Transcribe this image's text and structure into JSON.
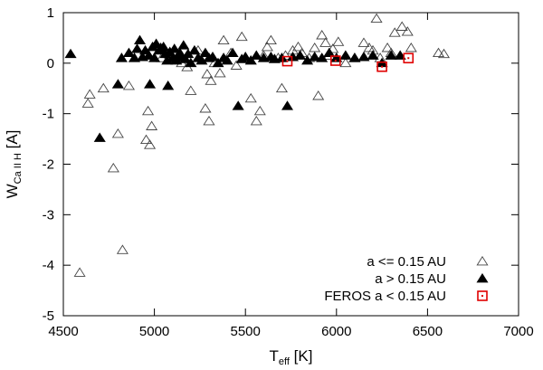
{
  "chart_data": {
    "type": "scatter",
    "xlim": [
      4500,
      7000
    ],
    "ylim": [
      -5,
      1
    ],
    "x_ticks": [
      "4500",
      "5000",
      "5500",
      "6000",
      "6500",
      "7000"
    ],
    "y_ticks": [
      "1",
      "0",
      "-1",
      "-2",
      "-3",
      "-4",
      "-5"
    ],
    "xlabel_main": "T",
    "xlabel_sub": "eff",
    "xlabel_unit": " [K]",
    "ylabel_main": "W",
    "ylabel_sub": "Ca II H",
    "ylabel_unit": " [A]",
    "grid": false,
    "legend_position": "bottom-right",
    "series": [
      {
        "name": "a <= 0.15 AU",
        "marker": "open-triangle",
        "color": "#444444",
        "points": [
          [
            4590,
            -4.15
          ],
          [
            4635,
            -0.8
          ],
          [
            4645,
            -0.62
          ],
          [
            4720,
            -0.5
          ],
          [
            4775,
            -2.08
          ],
          [
            4800,
            -1.4
          ],
          [
            4825,
            -3.7
          ],
          [
            4860,
            -0.45
          ],
          [
            4955,
            -1.52
          ],
          [
            4965,
            -0.95
          ],
          [
            4975,
            -1.62
          ],
          [
            4985,
            -1.25
          ],
          [
            5010,
            0.35
          ],
          [
            5040,
            0.1
          ],
          [
            5120,
            0.08
          ],
          [
            5150,
            0.0
          ],
          [
            5180,
            -0.08
          ],
          [
            5200,
            -0.55
          ],
          [
            5240,
            0.25
          ],
          [
            5280,
            -0.9
          ],
          [
            5290,
            -0.22
          ],
          [
            5300,
            -1.15
          ],
          [
            5310,
            -0.35
          ],
          [
            5330,
            0.0
          ],
          [
            5360,
            -0.2
          ],
          [
            5380,
            0.45
          ],
          [
            5420,
            0.2
          ],
          [
            5450,
            -0.05
          ],
          [
            5480,
            0.52
          ],
          [
            5500,
            0.1
          ],
          [
            5530,
            -0.7
          ],
          [
            5560,
            -1.15
          ],
          [
            5580,
            -0.95
          ],
          [
            5600,
            0.15
          ],
          [
            5620,
            0.32
          ],
          [
            5640,
            0.45
          ],
          [
            5680,
            0.1
          ],
          [
            5700,
            -0.5
          ],
          [
            5720,
            0.15
          ],
          [
            5760,
            0.25
          ],
          [
            5790,
            0.32
          ],
          [
            5810,
            0.2
          ],
          [
            5850,
            0.1
          ],
          [
            5880,
            0.3
          ],
          [
            5900,
            -0.65
          ],
          [
            5920,
            0.55
          ],
          [
            5940,
            0.4
          ],
          [
            5960,
            0.15
          ],
          [
            5980,
            0.28
          ],
          [
            6010,
            0.42
          ],
          [
            6050,
            0.0
          ],
          [
            6100,
            0.1
          ],
          [
            6150,
            0.4
          ],
          [
            6180,
            0.3
          ],
          [
            6200,
            0.25
          ],
          [
            6220,
            0.88
          ],
          [
            6240,
            0.1
          ],
          [
            6280,
            0.3
          ],
          [
            6300,
            0.2
          ],
          [
            6320,
            0.6
          ],
          [
            6360,
            0.72
          ],
          [
            6390,
            0.62
          ],
          [
            6410,
            0.3
          ],
          [
            6560,
            0.2
          ],
          [
            6590,
            0.18
          ]
        ]
      },
      {
        "name": "a > 0.15 AU",
        "marker": "filled-triangle",
        "color": "#000000",
        "points": [
          [
            4540,
            0.18
          ],
          [
            4700,
            -1.48
          ],
          [
            4800,
            -0.42
          ],
          [
            4820,
            0.1
          ],
          [
            4860,
            0.2
          ],
          [
            4890,
            0.1
          ],
          [
            4905,
            0.28
          ],
          [
            4920,
            0.45
          ],
          [
            4935,
            0.12
          ],
          [
            4950,
            0.25
          ],
          [
            4970,
            0.15
          ],
          [
            4975,
            -0.42
          ],
          [
            4990,
            0.32
          ],
          [
            5000,
            0.1
          ],
          [
            5010,
            0.38
          ],
          [
            5025,
            0.25
          ],
          [
            5035,
            0.3
          ],
          [
            5050,
            0.32
          ],
          [
            5060,
            0.18
          ],
          [
            5070,
            0.05
          ],
          [
            5075,
            -0.45
          ],
          [
            5085,
            0.22
          ],
          [
            5100,
            0.1
          ],
          [
            5110,
            0.28
          ],
          [
            5120,
            0.05
          ],
          [
            5130,
            0.15
          ],
          [
            5140,
            0.2
          ],
          [
            5150,
            0.12
          ],
          [
            5160,
            0.35
          ],
          [
            5170,
            0.08
          ],
          [
            5185,
            0.18
          ],
          [
            5200,
            0.0
          ],
          [
            5220,
            0.25
          ],
          [
            5240,
            0.1
          ],
          [
            5260,
            0.05
          ],
          [
            5280,
            0.2
          ],
          [
            5300,
            0.1
          ],
          [
            5320,
            0.12
          ],
          [
            5350,
            0.0
          ],
          [
            5380,
            0.1
          ],
          [
            5400,
            0.05
          ],
          [
            5430,
            0.2
          ],
          [
            5460,
            -0.85
          ],
          [
            5480,
            0.08
          ],
          [
            5500,
            0.12
          ],
          [
            5530,
            0.05
          ],
          [
            5560,
            0.15
          ],
          [
            5600,
            0.1
          ],
          [
            5640,
            0.12
          ],
          [
            5660,
            0.08
          ],
          [
            5700,
            0.1
          ],
          [
            5730,
            -0.85
          ],
          [
            5760,
            0.12
          ],
          [
            5800,
            0.15
          ],
          [
            5840,
            0.05
          ],
          [
            5880,
            0.12
          ],
          [
            5920,
            0.1
          ],
          [
            5960,
            0.2
          ],
          [
            6000,
            0.1
          ],
          [
            6050,
            0.15
          ],
          [
            6100,
            0.1
          ],
          [
            6150,
            0.12
          ],
          [
            6200,
            0.15
          ],
          [
            6250,
            0.0
          ],
          [
            6300,
            0.15
          ],
          [
            6350,
            0.15
          ]
        ]
      },
      {
        "name": "FEROS a < 0.15 AU",
        "marker": "open-square-dot",
        "color": "#e00000",
        "points": [
          [
            5730,
            0.04
          ],
          [
            5995,
            0.05
          ],
          [
            6250,
            -0.07
          ],
          [
            6395,
            0.1
          ]
        ]
      }
    ]
  }
}
